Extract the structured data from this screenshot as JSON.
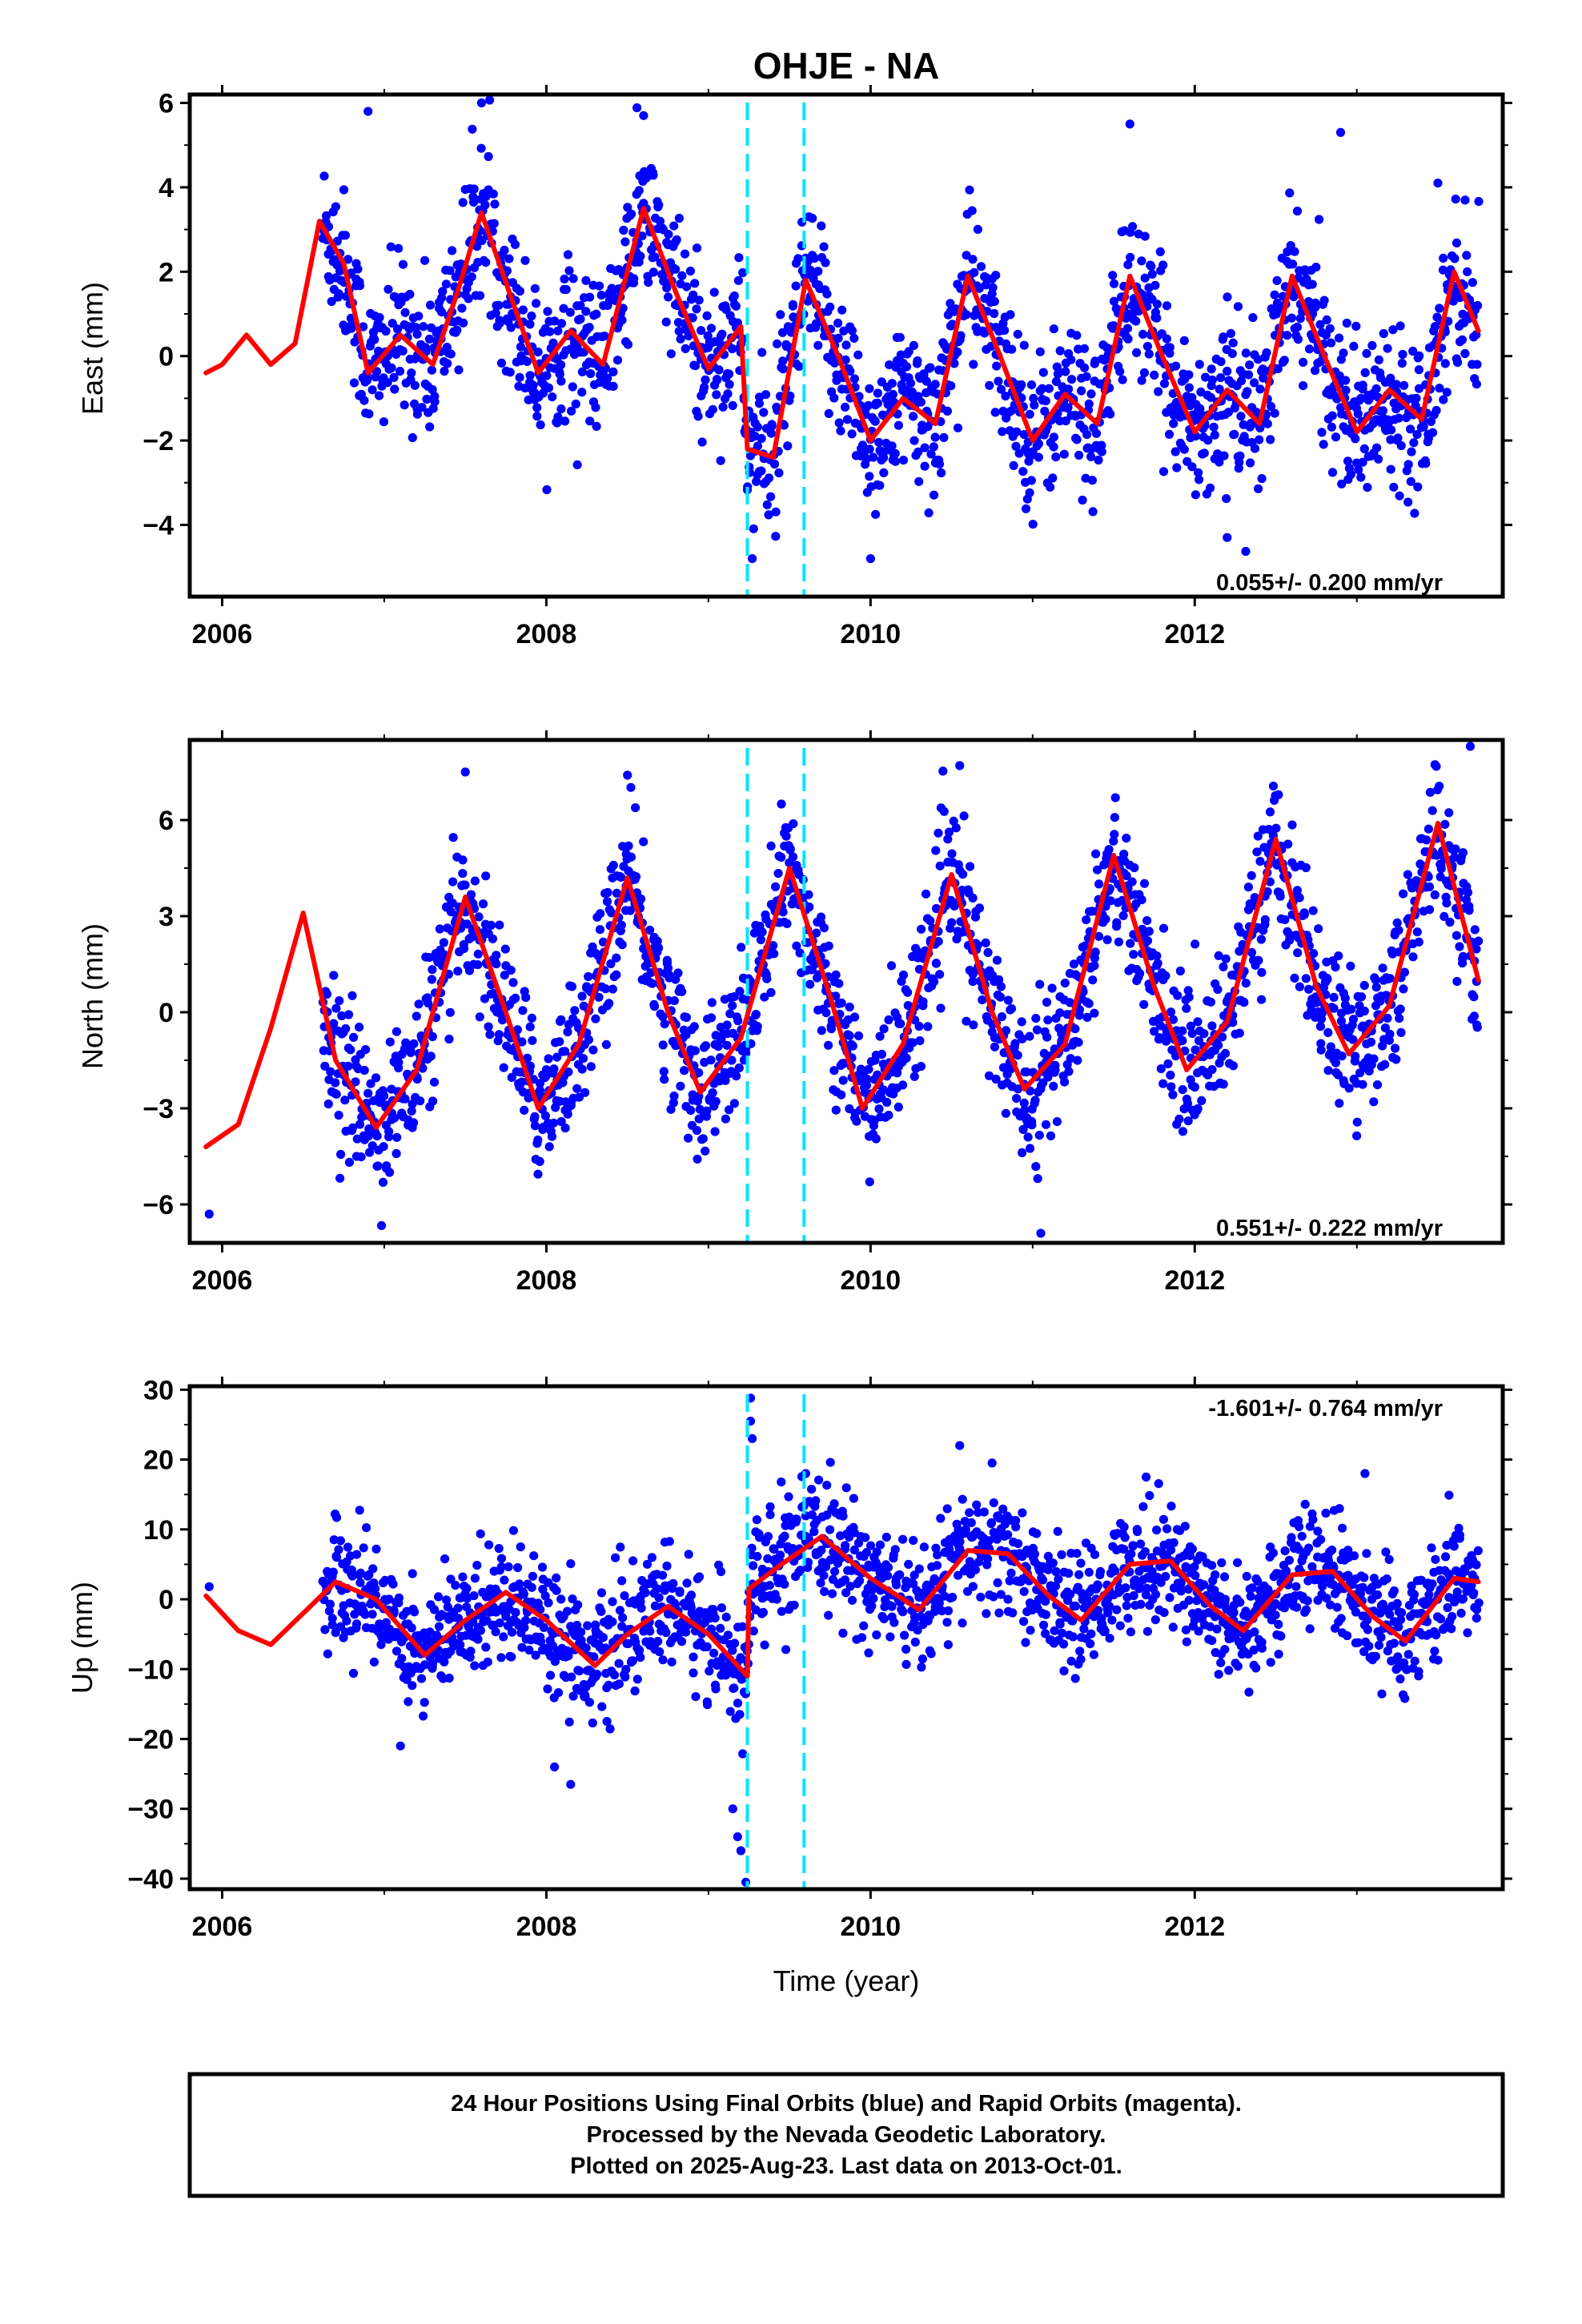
{
  "title": "OHJE - NA",
  "xlabel": "Time (year)",
  "footer": {
    "line1": "24 Hour Positions Using Final Orbits (blue) and Rapid Orbits (magenta).",
    "line2": "Processed by the Nevada Geodetic Laboratory.",
    "line3": "Plotted on 2025-Aug-23. Last data on 2013-Oct-01."
  },
  "colors": {
    "data": "#0000ff",
    "model": "#ff0000",
    "steps": "#00e5ff",
    "frame": "#000000"
  },
  "chart_data": [
    {
      "type": "scatter",
      "ylabel": "East (mm)",
      "rate_text": "0.055+/- 0.200 mm/yr",
      "xlim": [
        2005.8,
        2013.9
      ],
      "ylim": [
        -5.7,
        6.2
      ],
      "yticks": [
        -4,
        -2,
        0,
        2,
        4,
        6
      ],
      "xticks": [
        2006,
        2008,
        2010,
        2012
      ],
      "xtick_labels": [
        "2006",
        "2008",
        "2010",
        "2012"
      ],
      "step_epochs": [
        2009.24,
        2009.59
      ],
      "data_span": [
        2006.62,
        2013.75
      ],
      "model_curve": {
        "x": [
          2005.9,
          2006.0,
          2006.15,
          2006.3,
          2006.45,
          2006.6,
          2006.75,
          2006.9,
          2007.1,
          2007.3,
          2007.45,
          2007.6,
          2007.8,
          2007.95,
          2008.15,
          2008.35,
          2008.6,
          2008.8,
          2009.0,
          2009.2,
          2009.24,
          2009.4,
          2009.6,
          2009.8,
          2010.0,
          2010.2,
          2010.4,
          2010.6,
          2010.8,
          2011.0,
          2011.2,
          2011.4,
          2011.6,
          2011.8,
          2012.0,
          2012.2,
          2012.4,
          2012.6,
          2012.8,
          2013.0,
          2013.2,
          2013.4,
          2013.6,
          2013.75
        ],
        "y": [
          -0.4,
          -0.2,
          0.5,
          -0.2,
          0.3,
          3.2,
          2.2,
          -0.4,
          0.5,
          -0.2,
          1.5,
          3.4,
          1.2,
          -0.4,
          0.6,
          -0.2,
          3.5,
          1.5,
          -0.3,
          0.7,
          -2.2,
          -2.4,
          1.8,
          0.0,
          -2.0,
          -1.0,
          -1.6,
          1.9,
          0.0,
          -2.0,
          -0.9,
          -1.6,
          1.9,
          0.0,
          -1.8,
          -0.8,
          -1.6,
          1.9,
          0.0,
          -1.8,
          -0.8,
          -1.5,
          2.0,
          0.6
        ]
      },
      "series": [
        {
          "name": "Final Orbits",
          "color": "#0000ff",
          "noise": 0.9,
          "n": 1800
        },
        {
          "name": "model",
          "color": "#ff0000"
        }
      ],
      "outliers": [
        [
          2006.9,
          5.8
        ],
        [
          2007.6,
          6.0
        ],
        [
          2008.6,
          5.7
        ],
        [
          2009.27,
          -4.8
        ],
        [
          2010.0,
          -4.8
        ],
        [
          2011.6,
          5.5
        ],
        [
          2012.2,
          -4.3
        ],
        [
          2012.9,
          5.3
        ],
        [
          2013.5,
          4.1
        ]
      ]
    },
    {
      "type": "scatter",
      "ylabel": "North (mm)",
      "rate_text": "0.551+/- 0.222 mm/yr",
      "xlim": [
        2005.8,
        2013.9
      ],
      "ylim": [
        -7.2,
        8.5
      ],
      "yticks": [
        -6,
        -3,
        0,
        3,
        6
      ],
      "xticks": [
        2006,
        2008,
        2010,
        2012
      ],
      "xtick_labels": [
        "2006",
        "2008",
        "2010",
        "2012"
      ],
      "step_epochs": [
        2009.24,
        2009.59
      ],
      "data_span": [
        2006.62,
        2013.75
      ],
      "model_curve": {
        "x": [
          2005.9,
          2006.1,
          2006.3,
          2006.5,
          2006.7,
          2006.95,
          2007.2,
          2007.5,
          2007.75,
          2007.95,
          2008.2,
          2008.5,
          2008.75,
          2008.95,
          2009.2,
          2009.5,
          2009.75,
          2009.95,
          2010.2,
          2010.5,
          2010.75,
          2010.95,
          2011.2,
          2011.5,
          2011.75,
          2011.95,
          2012.2,
          2012.5,
          2012.75,
          2012.95,
          2013.2,
          2013.5,
          2013.75
        ],
        "y": [
          -4.2,
          -3.5,
          -0.5,
          3.1,
          -1.5,
          -3.6,
          -1.8,
          3.6,
          0.0,
          -3.0,
          -1.0,
          4.2,
          0.0,
          -2.5,
          -0.8,
          4.5,
          0.5,
          -3.0,
          -1.0,
          4.3,
          0.0,
          -2.4,
          -1.0,
          4.9,
          0.8,
          -1.8,
          -0.3,
          5.4,
          0.8,
          -1.3,
          0.2,
          5.9,
          1.0
        ]
      },
      "series": [
        {
          "name": "Final Orbits",
          "color": "#0000ff",
          "noise": 1.1,
          "n": 1800
        },
        {
          "name": "model",
          "color": "#ff0000"
        }
      ],
      "outliers": [
        [
          2005.92,
          -6.3
        ],
        [
          2007.5,
          7.5
        ],
        [
          2008.5,
          7.4
        ],
        [
          2009.45,
          6.5
        ],
        [
          2010.55,
          7.7
        ],
        [
          2011.05,
          -6.9
        ],
        [
          2013.7,
          8.3
        ]
      ]
    },
    {
      "type": "scatter",
      "ylabel": "Up (mm)",
      "rate_text": "-1.601+/- 0.764 mm/yr",
      "xlim": [
        2005.8,
        2013.9
      ],
      "ylim": [
        -41.5,
        30.5
      ],
      "yticks": [
        -40,
        -30,
        -20,
        -10,
        0,
        10,
        20,
        30
      ],
      "xticks": [
        2006,
        2008,
        2010,
        2012
      ],
      "xtick_labels": [
        "2006",
        "2008",
        "2010",
        "2012"
      ],
      "step_epochs": [
        2009.24,
        2009.59
      ],
      "data_span": [
        2006.62,
        2013.75
      ],
      "model_curve": {
        "x": [
          2005.9,
          2006.1,
          2006.3,
          2006.5,
          2006.7,
          2006.95,
          2007.25,
          2007.5,
          2007.75,
          2008.0,
          2008.3,
          2008.5,
          2008.75,
          2009.0,
          2009.24,
          2009.25,
          2009.45,
          2009.7,
          2010.0,
          2010.3,
          2010.6,
          2010.85,
          2011.1,
          2011.3,
          2011.6,
          2011.85,
          2012.1,
          2012.3,
          2012.6,
          2012.85,
          2013.1,
          2013.3,
          2013.6,
          2013.75
        ],
        "y": [
          0.5,
          -4.5,
          -6.5,
          -2.0,
          2.5,
          0.0,
          -8.0,
          -3.0,
          1.0,
          -3.0,
          -9.5,
          -5.0,
          -1.0,
          -5.0,
          -11.0,
          1.5,
          5.0,
          9.0,
          3.0,
          -1.5,
          7.0,
          6.5,
          0.5,
          -3.0,
          5.0,
          5.5,
          -1.0,
          -4.5,
          3.5,
          4.0,
          -2.5,
          -6.0,
          3.0,
          2.5
        ]
      },
      "series": [
        {
          "name": "Final Orbits",
          "color": "#0000ff",
          "noise": 4.2,
          "n": 1800
        },
        {
          "name": "model",
          "color": "#ff0000"
        }
      ],
      "outliers": [
        [
          2005.92,
          1.8
        ],
        [
          2007.1,
          -21.0
        ],
        [
          2008.05,
          -24.0
        ],
        [
          2008.15,
          -26.5
        ],
        [
          2009.15,
          -30.0
        ],
        [
          2009.18,
          -34.0
        ],
        [
          2009.2,
          -36.0
        ],
        [
          2009.23,
          -40.5
        ],
        [
          2009.26,
          28.8
        ],
        [
          2009.26,
          25.5
        ],
        [
          2009.27,
          23.0
        ],
        [
          2009.6,
          18.0
        ],
        [
          2010.55,
          22.0
        ],
        [
          2010.75,
          19.5
        ],
        [
          2011.7,
          17.5
        ],
        [
          2013.05,
          18.0
        ]
      ]
    }
  ]
}
